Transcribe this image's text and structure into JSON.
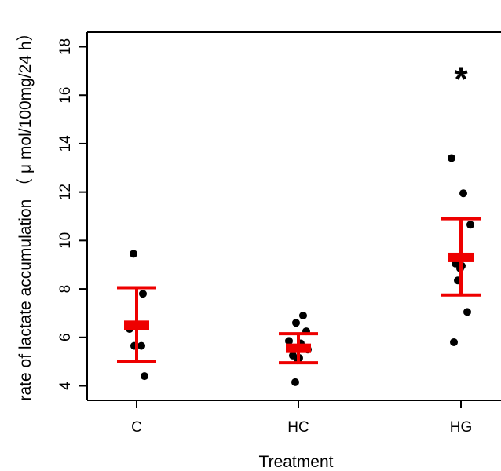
{
  "chart_data": {
    "type": "scatter",
    "xlabel": "Treatment",
    "ylabel": "rate of lactate accumulation （ μ mol/100mg/24 h）",
    "categories": [
      "C",
      "HC",
      "HG"
    ],
    "ylim": [
      3.4,
      18.6
    ],
    "yticks": [
      4,
      6,
      8,
      10,
      12,
      14,
      16,
      18
    ],
    "grid": false,
    "groups": [
      {
        "category": "C",
        "points": [
          9.45,
          7.8,
          6.35,
          5.65,
          5.65,
          4.4
        ],
        "mean": 6.5,
        "lower": 5.0,
        "upper": 8.05
      },
      {
        "category": "HC",
        "points": [
          6.9,
          6.6,
          6.25,
          5.85,
          5.75,
          5.5,
          5.25,
          5.15,
          5.05,
          4.15
        ],
        "mean": 5.55,
        "lower": 4.95,
        "upper": 6.15
      },
      {
        "category": "HG",
        "points": [
          13.4,
          11.95,
          10.65,
          9.05,
          8.95,
          8.85,
          8.35,
          7.05,
          5.8
        ],
        "mean": 9.3,
        "lower": 7.75,
        "upper": 10.9
      }
    ],
    "annotations": [
      {
        "category": "HG",
        "y": 16.9,
        "text": "*"
      }
    ],
    "colors": {
      "points": "#000000",
      "errorbar": "#ee0000",
      "axis": "#000000"
    }
  }
}
